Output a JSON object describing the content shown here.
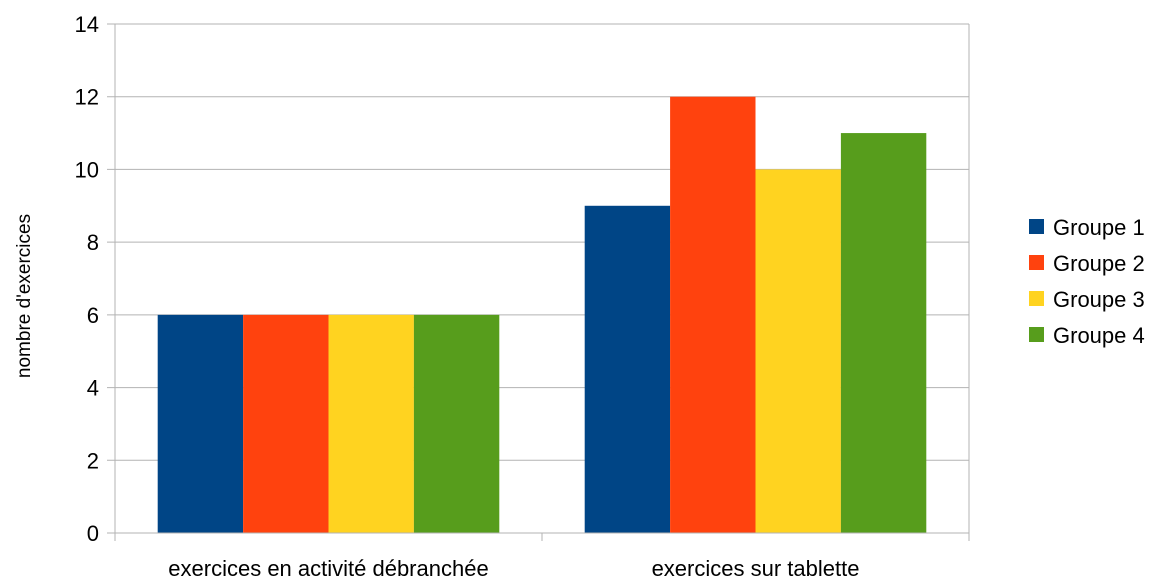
{
  "chart_data": {
    "type": "bar",
    "title": "",
    "xlabel": "",
    "ylabel": "nombre d'exercices",
    "categories": [
      "exercices en activité débranchée",
      "exercices sur tablette"
    ],
    "series": [
      {
        "name": "Groupe 1",
        "values": [
          6,
          9
        ],
        "color": "#004586"
      },
      {
        "name": "Groupe 2",
        "values": [
          6,
          12
        ],
        "color": "#ff420e"
      },
      {
        "name": "Groupe 3",
        "values": [
          6,
          10
        ],
        "color": "#ffd320"
      },
      {
        "name": "Groupe 4",
        "values": [
          6,
          11
        ],
        "color": "#579d1c"
      }
    ],
    "ylim": [
      0,
      14
    ],
    "yticks": [
      0,
      2,
      4,
      6,
      8,
      10,
      12,
      14
    ],
    "grid": true,
    "legend": "right"
  }
}
